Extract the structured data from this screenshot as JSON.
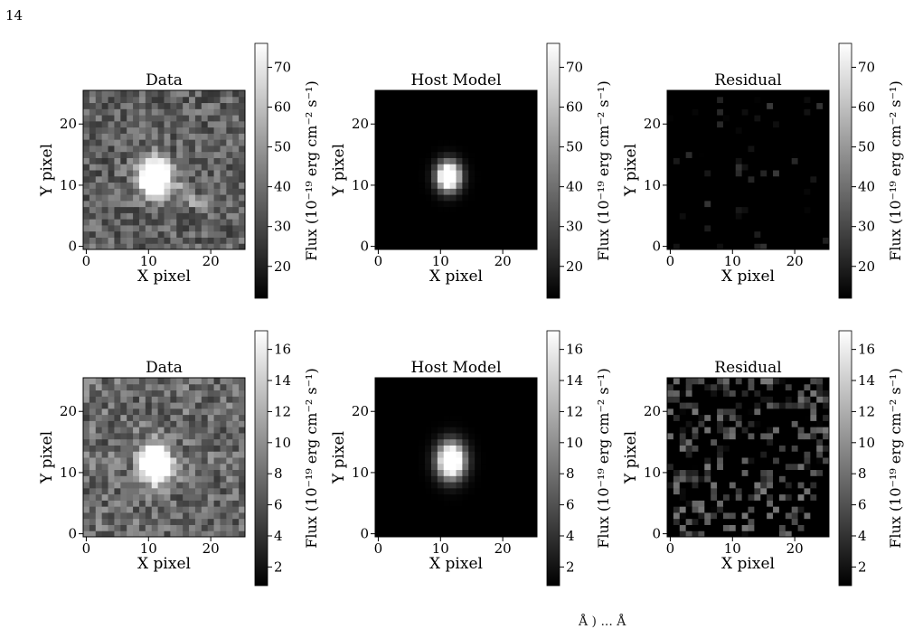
{
  "page_number": "14",
  "caption_fragment": "Å ) ... Å",
  "chart_data": [
    {
      "type": "heatmap",
      "title": "Data",
      "xlabel": "X pixel",
      "ylabel": "Y pixel",
      "x_ticks": [
        "0",
        "10",
        "20"
      ],
      "y_ticks": [
        "0",
        "10",
        "20"
      ],
      "grid_size": 26,
      "colorbar": {
        "label": "Flux (10⁻¹⁹ erg cm⁻² s⁻¹)",
        "ticks": [
          "20",
          "30",
          "40",
          "50",
          "60",
          "70"
        ],
        "range": [
          12,
          76
        ]
      },
      "image": {
        "kind": "data",
        "background": 0.38,
        "noise": 0.36,
        "blob": {
          "x": 11.5,
          "y": 11.8,
          "sx": 1.7,
          "sy": 1.9,
          "amp": 1.0
        },
        "streak": true
      }
    },
    {
      "type": "heatmap",
      "title": "Host Model",
      "xlabel": "X pixel",
      "ylabel": "Y pixel",
      "x_ticks": [
        "0",
        "10",
        "20"
      ],
      "y_ticks": [
        "0",
        "10",
        "20"
      ],
      "grid_size": 26,
      "colorbar": {
        "label": "Flux (10⁻¹⁹ erg cm⁻² s⁻¹)",
        "ticks": [
          "20",
          "30",
          "40",
          "50",
          "60",
          "70"
        ],
        "range": [
          12,
          76
        ]
      },
      "image": {
        "kind": "model",
        "background": 0.0,
        "noise": 0.0,
        "blob": {
          "x": 11.8,
          "y": 12.0,
          "sx": 1.3,
          "sy": 1.6,
          "amp": 1.0
        }
      }
    },
    {
      "type": "heatmap",
      "title": "Residual",
      "xlabel": "X pixel",
      "ylabel": "Y pixel",
      "x_ticks": [
        "0",
        "10",
        "20"
      ],
      "y_ticks": [
        "0",
        "10",
        "20"
      ],
      "grid_size": 26,
      "colorbar": {
        "label": "Flux (10⁻¹⁹ erg cm⁻² s⁻¹)",
        "ticks": [
          "20",
          "30",
          "40",
          "50",
          "60",
          "70"
        ],
        "range": [
          12,
          76
        ]
      },
      "image": {
        "kind": "residual",
        "background": 0.0,
        "noise": 0.1,
        "sparsity": 0.93,
        "blob": null
      }
    },
    {
      "type": "heatmap",
      "title": "Data",
      "xlabel": "X pixel",
      "ylabel": "Y pixel",
      "x_ticks": [
        "0",
        "10",
        "20"
      ],
      "y_ticks": [
        "0",
        "10",
        "20"
      ],
      "grid_size": 26,
      "colorbar": {
        "label": "Flux (10⁻¹⁹ erg cm⁻² s⁻¹)",
        "ticks": [
          "2",
          "4",
          "6",
          "8",
          "10",
          "12",
          "14",
          "16"
        ],
        "range": [
          0.8,
          17.2
        ]
      },
      "image": {
        "kind": "data",
        "background": 0.42,
        "noise": 0.4,
        "blob": {
          "x": 11.5,
          "y": 12.0,
          "sx": 1.6,
          "sy": 2.0,
          "amp": 1.0
        },
        "streak": false
      }
    },
    {
      "type": "heatmap",
      "title": "Host Model",
      "xlabel": "X pixel",
      "ylabel": "Y pixel",
      "x_ticks": [
        "0",
        "10",
        "20"
      ],
      "y_ticks": [
        "0",
        "10",
        "20"
      ],
      "grid_size": 26,
      "colorbar": {
        "label": "Flux (10⁻¹⁹ erg cm⁻² s⁻¹)",
        "ticks": [
          "2",
          "4",
          "6",
          "8",
          "10",
          "12",
          "14",
          "16"
        ],
        "range": [
          0.8,
          17.2
        ]
      },
      "image": {
        "kind": "model",
        "background": 0.0,
        "noise": 0.0,
        "blob": {
          "x": 12.2,
          "y": 12.5,
          "sx": 1.5,
          "sy": 2.0,
          "amp": 1.0
        }
      }
    },
    {
      "type": "heatmap",
      "title": "Residual",
      "xlabel": "X pixel",
      "ylabel": "Y pixel",
      "x_ticks": [
        "0",
        "10",
        "20"
      ],
      "y_ticks": [
        "0",
        "10",
        "20"
      ],
      "grid_size": 26,
      "colorbar": {
        "label": "Flux (10⁻¹⁹ erg cm⁻² s⁻¹)",
        "ticks": [
          "2",
          "4",
          "6",
          "8",
          "10",
          "12",
          "14",
          "16"
        ],
        "range": [
          0.8,
          17.2
        ]
      },
      "image": {
        "kind": "residual",
        "background": 0.0,
        "noise": 0.22,
        "sparsity": 0.6,
        "blob": null
      }
    }
  ]
}
